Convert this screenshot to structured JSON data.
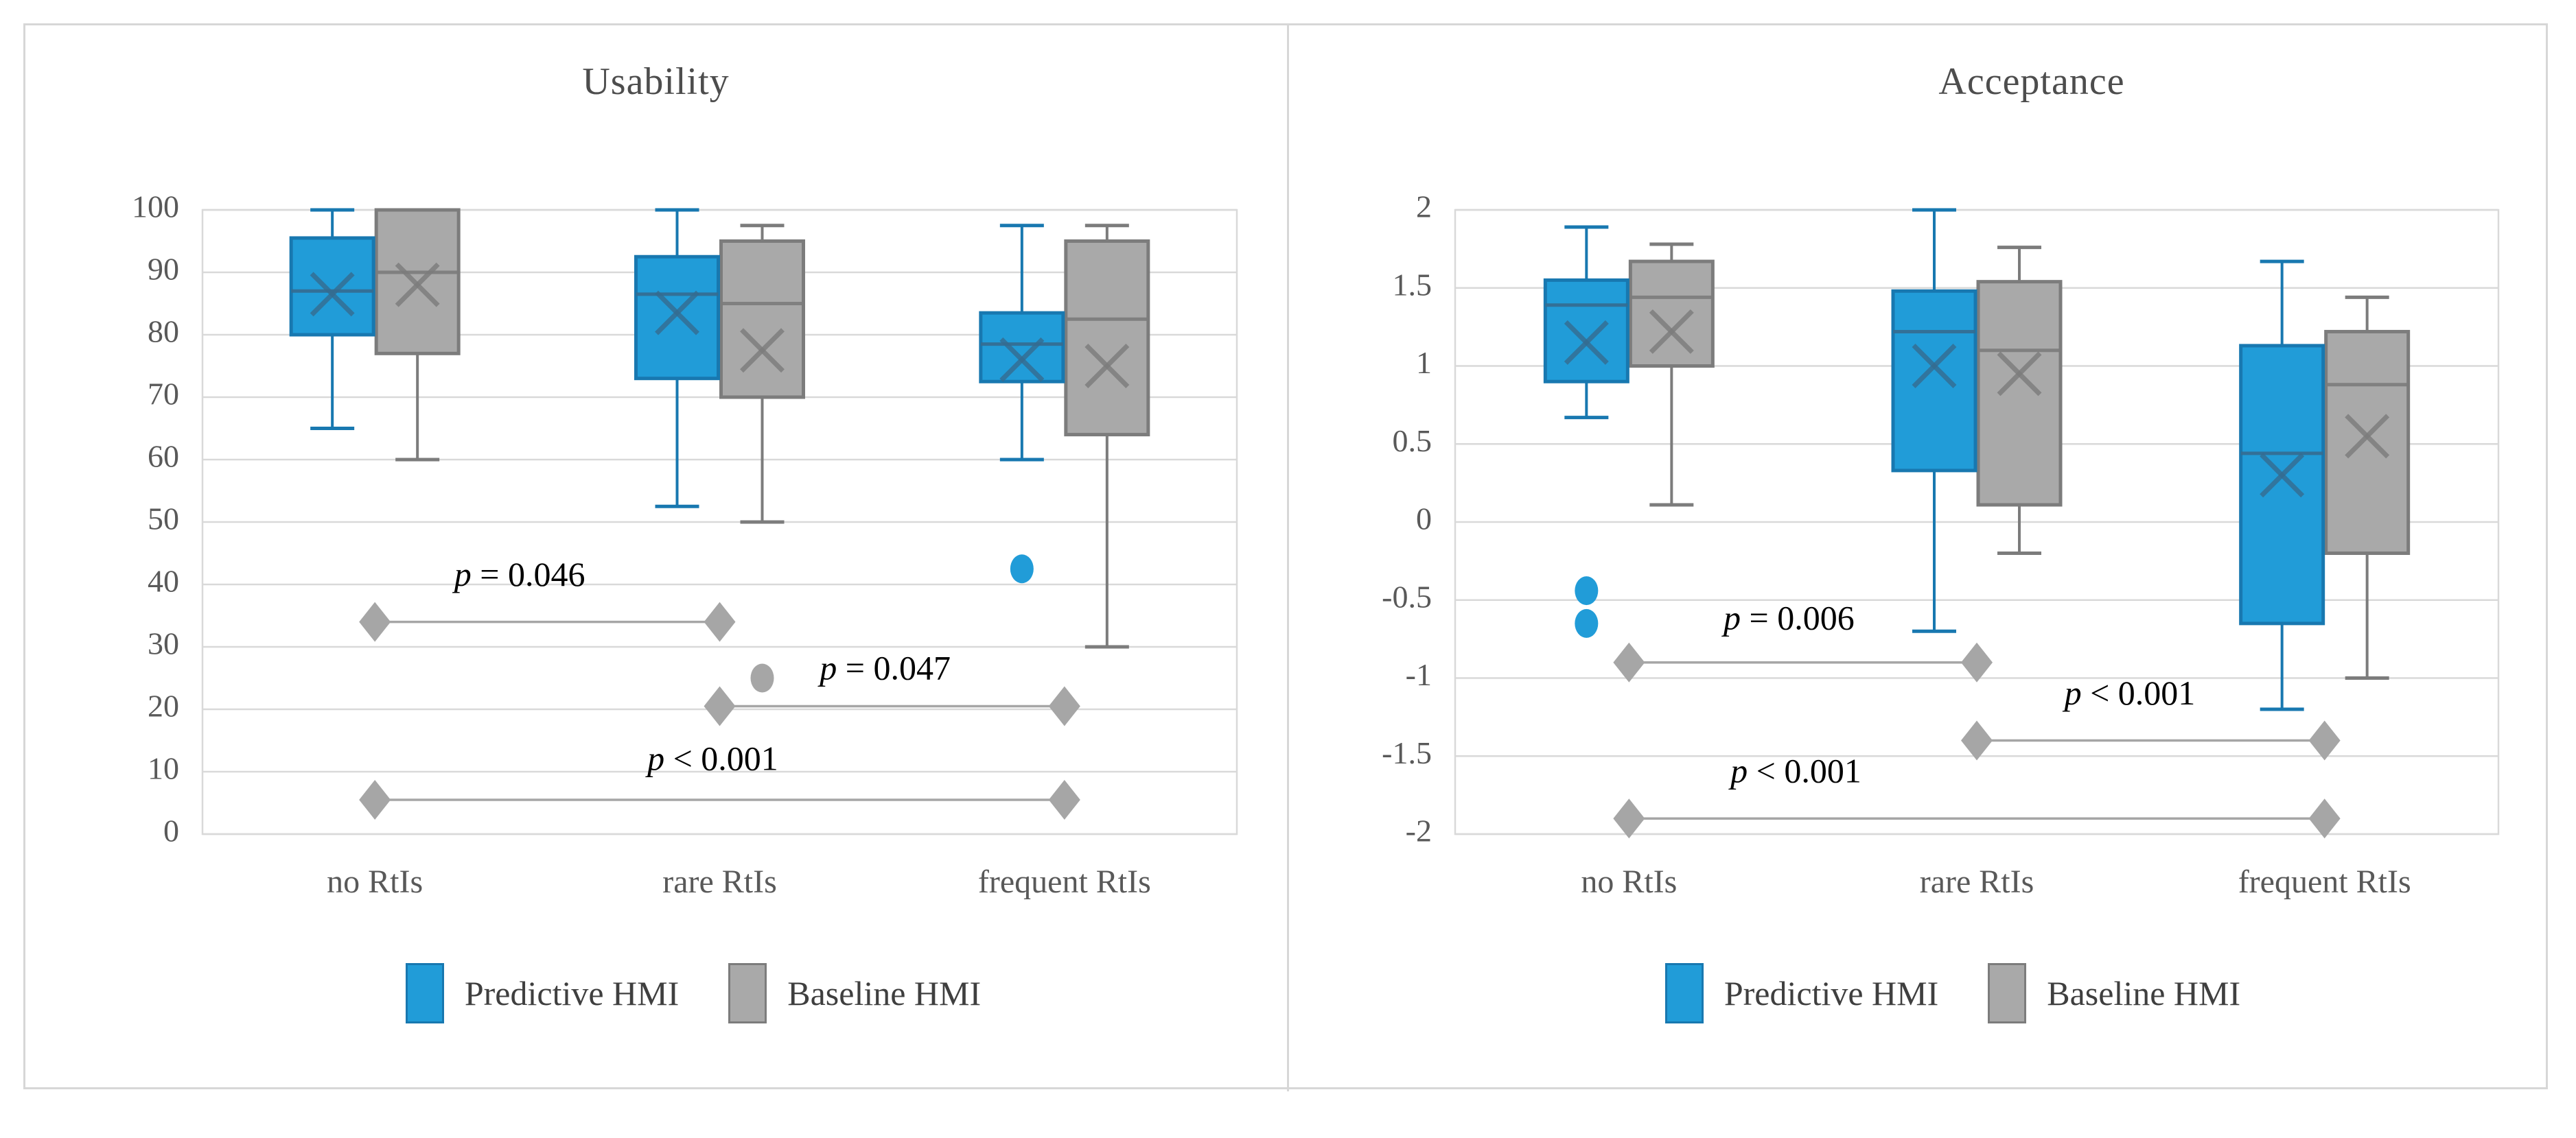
{
  "legend": {
    "items": [
      {
        "label": "Predictive HMI",
        "color": "#219CD8",
        "border": "#1878B0"
      },
      {
        "label": "Baseline HMI",
        "color": "#A9A9A9",
        "border": "#7C7C7C"
      }
    ]
  },
  "chart_data": [
    {
      "type": "box",
      "title": "Usability",
      "categories": [
        "no RtIs",
        "rare RtIs",
        "frequent RtIs"
      ],
      "ylim": [
        0,
        100
      ],
      "yticks": [
        100,
        90,
        80,
        70,
        60,
        50,
        40,
        30,
        20,
        10,
        0
      ],
      "ytick_labels": [
        "100",
        "90",
        "80",
        "70",
        "60",
        "50",
        "40",
        "30",
        "20",
        "10",
        "0"
      ],
      "grid": true,
      "legend_position": "bottom",
      "series": [
        {
          "name": "Predictive HMI",
          "boxes": [
            {
              "category": "no RtIs",
              "min": 65,
              "q1": 80,
              "median": 87,
              "q3": 95.5,
              "max": 100,
              "mean": 86.5,
              "outliers": []
            },
            {
              "category": "rare RtIs",
              "min": 52.5,
              "q1": 73,
              "median": 86.5,
              "q3": 92.5,
              "max": 100,
              "mean": 83.5,
              "outliers": []
            },
            {
              "category": "frequent RtIs",
              "min": 60,
              "q1": 72.5,
              "median": 78.5,
              "q3": 83.5,
              "max": 97.5,
              "mean": 76,
              "outliers": [
                42.5
              ]
            }
          ]
        },
        {
          "name": "Baseline HMI",
          "boxes": [
            {
              "category": "no RtIs",
              "min": 60,
              "q1": 77,
              "median": 90,
              "q3": 100,
              "max": 100,
              "mean": 88,
              "outliers": []
            },
            {
              "category": "rare RtIs",
              "min": 50,
              "q1": 70,
              "median": 85,
              "q3": 95,
              "max": 97.5,
              "mean": 77.5,
              "outliers": [
                25
              ]
            },
            {
              "category": "frequent RtIs",
              "min": 30,
              "q1": 64,
              "median": 82.5,
              "q3": 95,
              "max": 97.5,
              "mean": 75,
              "outliers": []
            }
          ]
        }
      ],
      "annotations": [
        {
          "label": "p = 0.046",
          "between": [
            0,
            1
          ],
          "y": 34,
          "label_x": 0.42,
          "label_y": 41
        },
        {
          "label": "p = 0.047",
          "between": [
            1,
            2
          ],
          "y": 20.5,
          "label_x": 0.48,
          "label_y": 26
        },
        {
          "label": "p < 0.001",
          "between": [
            0,
            2
          ],
          "y": 5.5,
          "label_x": 0.49,
          "label_y": 11.5
        }
      ]
    },
    {
      "type": "box",
      "title": "Acceptance",
      "categories": [
        "no RtIs",
        "rare RtIs",
        "frequent RtIs"
      ],
      "ylim": [
        -2,
        2
      ],
      "yticks": [
        2,
        1.5,
        1,
        0.5,
        0,
        -0.5,
        -1,
        -1.5,
        -2
      ],
      "ytick_labels": [
        "2",
        "1.5",
        "1",
        "0.5",
        "0",
        "-0.5",
        "-1",
        "-1.5",
        "-2"
      ],
      "grid": true,
      "legend_position": "bottom",
      "series": [
        {
          "name": "Predictive HMI",
          "boxes": [
            {
              "category": "no RtIs",
              "min": 0.67,
              "q1": 0.9,
              "median": 1.39,
              "q3": 1.55,
              "max": 1.89,
              "mean": 1.15,
              "outliers": [
                -0.44,
                -0.65
              ]
            },
            {
              "category": "rare RtIs",
              "min": -0.7,
              "q1": 0.33,
              "median": 1.22,
              "q3": 1.48,
              "max": 2.0,
              "mean": 1.0,
              "outliers": []
            },
            {
              "category": "frequent RtIs",
              "min": -1.2,
              "q1": -0.65,
              "median": 0.44,
              "q3": 1.13,
              "max": 1.67,
              "mean": 0.3,
              "outliers": []
            }
          ]
        },
        {
          "name": "Baseline HMI",
          "boxes": [
            {
              "category": "no RtIs",
              "min": 0.11,
              "q1": 1.0,
              "median": 1.44,
              "q3": 1.67,
              "max": 1.78,
              "mean": 1.22,
              "outliers": []
            },
            {
              "category": "rare RtIs",
              "min": -0.2,
              "q1": 0.11,
              "median": 1.1,
              "q3": 1.54,
              "max": 1.76,
              "mean": 0.95,
              "outliers": []
            },
            {
              "category": "frequent RtIs",
              "min": -1.0,
              "q1": -0.2,
              "median": 0.88,
              "q3": 1.22,
              "max": 1.44,
              "mean": 0.55,
              "outliers": []
            }
          ]
        }
      ],
      "annotations": [
        {
          "label": "p = 0.006",
          "between": [
            0,
            1
          ],
          "y": -0.9,
          "label_x": 0.46,
          "label_y": -0.64
        },
        {
          "label": "p < 0.001",
          "between": [
            1,
            2
          ],
          "y": -1.4,
          "label_x": 0.44,
          "label_y": -1.12
        },
        {
          "label": "p < 0.001",
          "between": [
            0,
            2
          ],
          "y": -1.9,
          "label_x": 0.24,
          "label_y": -1.62
        }
      ]
    }
  ],
  "colors": {
    "gridline": "#D9D9D9",
    "axis_text": "#595959",
    "title_text": "#4D4D4D",
    "bracket": "#A6A6A6",
    "p_text": "#000000"
  }
}
